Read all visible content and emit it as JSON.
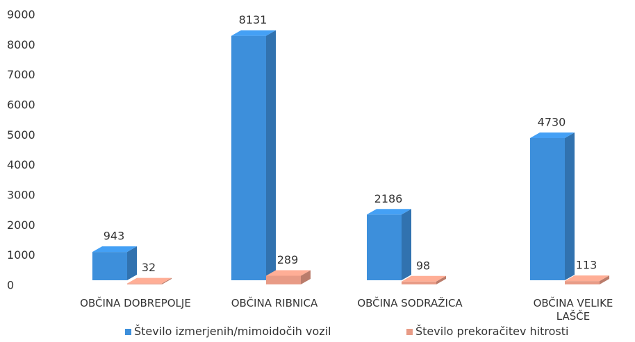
{
  "chart_data": {
    "type": "bar3d",
    "categories": [
      "OBČINA DOBREPOLJE",
      "OBČINA RIBNICA",
      "OBČINA SODRAŽICA",
      "OBČINA VELIKE LAŠČE"
    ],
    "series": [
      {
        "name": "Število izmerjenih/mimoidočih vozil",
        "color": "#3d8fdb",
        "values": [
          943,
          8131,
          2186,
          4730
        ]
      },
      {
        "name": "Število prekoračitev hitrosti",
        "color": "#e89b86",
        "values": [
          32,
          289,
          98,
          113
        ]
      }
    ],
    "ylim": [
      0,
      9000
    ],
    "yticks": [
      0,
      1000,
      2000,
      3000,
      4000,
      5000,
      6000,
      7000,
      8000,
      9000
    ]
  }
}
